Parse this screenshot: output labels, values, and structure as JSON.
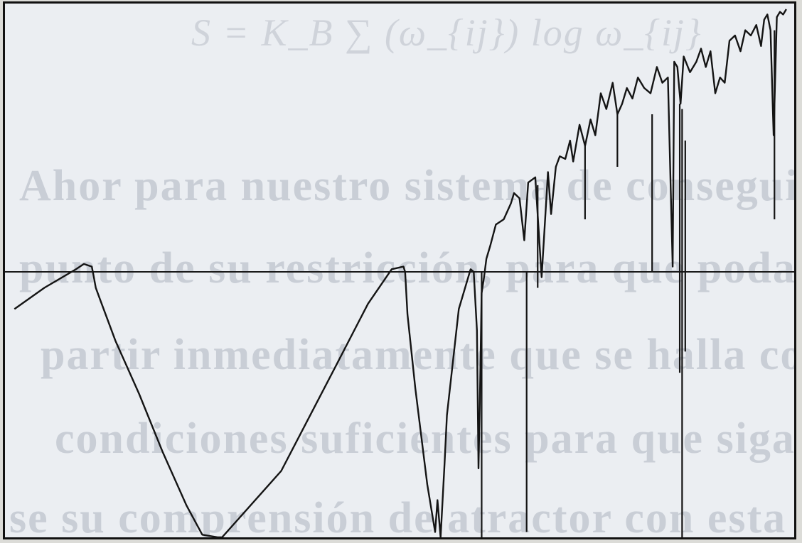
{
  "ghost_text": {
    "equation": "S = K_B ∑ (ω_{ij}) log ω_{ij}",
    "line1": "Ahor para nuestro sistema de conseguir",
    "line2": "punto de su restricción, para que podamos",
    "line3": "partir inmediatamente que se halla con",
    "line4": "condiciones suficientes para que sigan",
    "line5": "se su comprensión de atractor con esta fase"
  },
  "chart_data": {
    "type": "line",
    "title": "",
    "xlabel": "",
    "ylabel": "",
    "xlim": [
      0,
      1
    ],
    "ylim": [
      -1,
      1
    ],
    "grid": false,
    "legend": "none",
    "reference_line_y": 0,
    "line_color": "#141414",
    "series": [
      {
        "x": [
          0.012,
          0.05,
          0.09,
          0.1,
          0.11,
          0.112,
          0.115,
          0.12,
          0.14,
          0.17,
          0.2,
          0.23,
          0.25,
          0.27,
          0.275,
          0.35,
          0.42,
          0.46,
          0.49,
          0.505,
          0.507,
          0.51,
          0.52,
          0.535,
          0.545,
          0.548,
          0.552,
          0.557,
          0.56,
          0.575,
          0.59,
          0.594,
          0.598,
          0.6,
          0.602,
          0.604,
          0.607,
          0.61,
          0.615,
          0.622,
          0.632,
          0.641,
          0.645,
          0.652,
          0.658,
          0.663,
          0.672,
          0.68,
          0.688,
          0.692,
          0.698,
          0.703,
          0.71,
          0.716,
          0.72,
          0.728,
          0.735,
          0.742,
          0.748,
          0.755,
          0.762,
          0.77,
          0.776,
          0.782,
          0.788,
          0.795,
          0.802,
          0.81,
          0.818,
          0.826,
          0.833,
          0.84,
          0.846,
          0.848,
          0.852,
          0.856,
          0.86,
          0.868,
          0.876,
          0.882,
          0.888,
          0.894,
          0.9,
          0.906,
          0.912,
          0.918,
          0.925,
          0.932,
          0.938,
          0.945,
          0.952,
          0.958,
          0.962,
          0.966,
          0.97,
          0.974,
          0.978,
          0.982,
          0.986,
          0.99
        ],
        "y": [
          -0.14,
          -0.06,
          0.01,
          0.03,
          0.02,
          -0.01,
          -0.06,
          -0.1,
          -0.26,
          -0.46,
          -0.68,
          -0.88,
          -0.99,
          -1.0,
          -1.0,
          -0.75,
          -0.35,
          -0.12,
          0.01,
          0.02,
          0.0,
          -0.16,
          -0.44,
          -0.8,
          -0.98,
          -0.86,
          -1.0,
          -0.72,
          -0.54,
          -0.14,
          0.01,
          0.0,
          -0.22,
          -0.74,
          -0.44,
          -0.08,
          -0.02,
          0.05,
          0.1,
          0.18,
          0.2,
          0.26,
          0.3,
          0.28,
          0.12,
          0.34,
          0.36,
          -0.02,
          0.38,
          0.22,
          0.4,
          0.44,
          0.43,
          0.5,
          0.42,
          0.56,
          0.48,
          0.58,
          0.52,
          0.68,
          0.62,
          0.72,
          0.6,
          0.64,
          0.7,
          0.66,
          0.74,
          0.7,
          0.68,
          0.78,
          0.72,
          0.74,
          0.02,
          0.8,
          0.78,
          0.64,
          0.82,
          0.76,
          0.8,
          0.85,
          0.78,
          0.84,
          0.68,
          0.74,
          0.72,
          0.88,
          0.9,
          0.84,
          0.92,
          0.9,
          0.94,
          0.86,
          0.96,
          0.98,
          0.92,
          0.52,
          0.97,
          0.99,
          0.98,
          1.0
        ],
        "spikes": [
          {
            "x": 0.604,
            "y_from": 0.0,
            "y_to": -1.0
          },
          {
            "x": 0.661,
            "y_from": 0.0,
            "y_to": -0.98
          },
          {
            "x": 0.675,
            "y_from": 0.33,
            "y_to": -0.06
          },
          {
            "x": 0.735,
            "y_from": 0.48,
            "y_to": 0.2
          },
          {
            "x": 0.776,
            "y_from": 0.6,
            "y_to": 0.4
          },
          {
            "x": 0.82,
            "y_from": 0.6,
            "y_to": 0.0
          },
          {
            "x": 0.855,
            "y_from": 0.64,
            "y_to": -0.38
          },
          {
            "x": 0.858,
            "y_from": 0.62,
            "y_to": -1.0
          },
          {
            "x": 0.862,
            "y_from": 0.5,
            "y_to": -0.3
          },
          {
            "x": 0.975,
            "y_from": 0.92,
            "y_to": 0.2
          }
        ]
      }
    ]
  }
}
